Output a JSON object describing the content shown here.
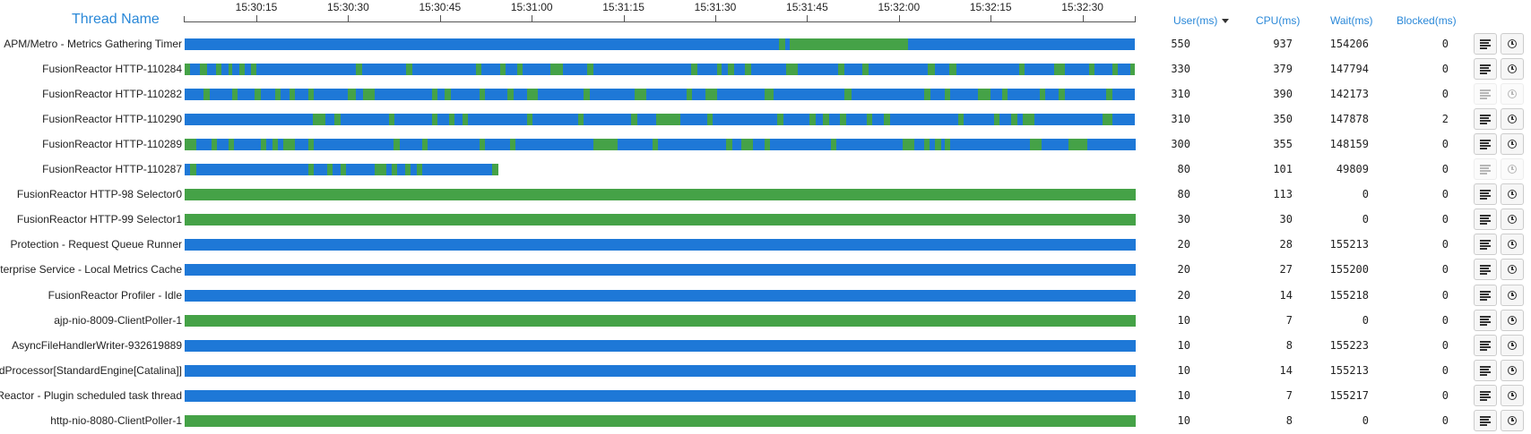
{
  "header": {
    "thread_name": "Thread Name",
    "columns": {
      "user": "User(ms)",
      "cpu": "CPU(ms)",
      "wait": "Wait(ms)",
      "blocked": "Blocked(ms)"
    },
    "sorted_column": "user",
    "sort_direction": "desc"
  },
  "timeline": {
    "ticks": [
      "15:30:15",
      "15:30:30",
      "15:30:45",
      "15:31:00",
      "15:31:15",
      "15:31:30",
      "15:31:45",
      "15:32:00",
      "15:32:15",
      "15:32:30"
    ]
  },
  "colors": {
    "waiting": "#1e78d7",
    "running": "#45a247"
  },
  "icons": {
    "stack_trace": "stack-trace-icon",
    "history": "history-clock-icon"
  },
  "threads": [
    {
      "name": "APM/Metro - Metrics Gathering Timer",
      "user": "550",
      "cpu": "937",
      "wait": "154206",
      "blocked": "0",
      "actions_enabled": true,
      "segments": [
        [
          "w",
          0,
          0.625
        ],
        [
          "r",
          0.625,
          0.632
        ],
        [
          "w",
          0.632,
          0.637
        ],
        [
          "r",
          0.637,
          0.761
        ],
        [
          "w",
          0.761,
          1.0
        ]
      ]
    },
    {
      "name": "FusionReactor HTTP-110284",
      "user": "330",
      "cpu": "379",
      "wait": "147794",
      "blocked": "0",
      "actions_enabled": true,
      "segments": [
        [
          "r",
          0,
          0.006
        ],
        [
          "w",
          0.006,
          0.016
        ],
        [
          "r",
          0.016,
          0.024
        ],
        [
          "w",
          0.024,
          0.033
        ],
        [
          "r",
          0.033,
          0.039
        ],
        [
          "w",
          0.039,
          0.046
        ],
        [
          "r",
          0.046,
          0.05
        ],
        [
          "w",
          0.05,
          0.058
        ],
        [
          "r",
          0.058,
          0.063
        ],
        [
          "w",
          0.063,
          0.07
        ],
        [
          "r",
          0.07,
          0.075
        ],
        [
          "w",
          0.075,
          0.18
        ],
        [
          "r",
          0.18,
          0.187
        ],
        [
          "w",
          0.187,
          0.233
        ],
        [
          "r",
          0.233,
          0.24
        ],
        [
          "w",
          0.24,
          0.307
        ],
        [
          "r",
          0.307,
          0.312
        ],
        [
          "w",
          0.312,
          0.332
        ],
        [
          "r",
          0.332,
          0.338
        ],
        [
          "w",
          0.338,
          0.35
        ],
        [
          "r",
          0.35,
          0.356
        ],
        [
          "w",
          0.356,
          0.385
        ],
        [
          "r",
          0.385,
          0.398
        ],
        [
          "w",
          0.398,
          0.424
        ],
        [
          "r",
          0.424,
          0.43
        ],
        [
          "w",
          0.43,
          0.533
        ],
        [
          "r",
          0.533,
          0.54
        ],
        [
          "w",
          0.54,
          0.56
        ],
        [
          "r",
          0.56,
          0.565
        ],
        [
          "w",
          0.565,
          0.572
        ],
        [
          "r",
          0.572,
          0.578
        ],
        [
          "w",
          0.578,
          0.59
        ],
        [
          "r",
          0.59,
          0.596
        ],
        [
          "w",
          0.596,
          0.633
        ],
        [
          "r",
          0.633,
          0.645
        ],
        [
          "w",
          0.645,
          0.688
        ],
        [
          "r",
          0.688,
          0.694
        ],
        [
          "w",
          0.694,
          0.713
        ],
        [
          "r",
          0.713,
          0.72
        ],
        [
          "w",
          0.72,
          0.782
        ],
        [
          "r",
          0.782,
          0.79
        ],
        [
          "w",
          0.79,
          0.805
        ],
        [
          "r",
          0.805,
          0.812
        ],
        [
          "w",
          0.812,
          0.878
        ],
        [
          "r",
          0.878,
          0.884
        ],
        [
          "w",
          0.884,
          0.915
        ],
        [
          "r",
          0.915,
          0.926
        ],
        [
          "w",
          0.926,
          0.952
        ],
        [
          "r",
          0.952,
          0.958
        ],
        [
          "w",
          0.958,
          0.976
        ],
        [
          "r",
          0.976,
          0.982
        ],
        [
          "w",
          0.982,
          0.995
        ],
        [
          "r",
          0.995,
          1.0
        ]
      ]
    },
    {
      "name": "FusionReactor HTTP-110282",
      "user": "310",
      "cpu": "390",
      "wait": "142173",
      "blocked": "0",
      "actions_enabled": false,
      "segments": [
        [
          "w",
          0,
          0.02
        ],
        [
          "r",
          0.02,
          0.026
        ],
        [
          "w",
          0.026,
          0.05
        ],
        [
          "r",
          0.05,
          0.056
        ],
        [
          "w",
          0.056,
          0.074
        ],
        [
          "r",
          0.074,
          0.08
        ],
        [
          "w",
          0.08,
          0.095
        ],
        [
          "r",
          0.095,
          0.101
        ],
        [
          "w",
          0.101,
          0.11
        ],
        [
          "r",
          0.11,
          0.116
        ],
        [
          "w",
          0.116,
          0.13
        ],
        [
          "r",
          0.13,
          0.136
        ],
        [
          "w",
          0.136,
          0.172
        ],
        [
          "r",
          0.172,
          0.18
        ],
        [
          "w",
          0.18,
          0.188
        ],
        [
          "r",
          0.188,
          0.2
        ],
        [
          "w",
          0.2,
          0.26
        ],
        [
          "r",
          0.26,
          0.266
        ],
        [
          "w",
          0.266,
          0.274
        ],
        [
          "r",
          0.274,
          0.28
        ],
        [
          "w",
          0.28,
          0.31
        ],
        [
          "r",
          0.31,
          0.316
        ],
        [
          "w",
          0.316,
          0.34
        ],
        [
          "r",
          0.34,
          0.346
        ],
        [
          "w",
          0.346,
          0.36
        ],
        [
          "r",
          0.36,
          0.372
        ],
        [
          "w",
          0.372,
          0.42
        ],
        [
          "r",
          0.42,
          0.426
        ],
        [
          "w",
          0.426,
          0.474
        ],
        [
          "r",
          0.474,
          0.486
        ],
        [
          "w",
          0.486,
          0.528
        ],
        [
          "r",
          0.528,
          0.534
        ],
        [
          "w",
          0.534,
          0.548
        ],
        [
          "r",
          0.548,
          0.56
        ],
        [
          "w",
          0.56,
          0.61
        ],
        [
          "r",
          0.61,
          0.62
        ],
        [
          "w",
          0.62,
          0.694
        ],
        [
          "r",
          0.694,
          0.702
        ],
        [
          "w",
          0.702,
          0.778
        ],
        [
          "r",
          0.778,
          0.785
        ],
        [
          "w",
          0.785,
          0.8
        ],
        [
          "r",
          0.8,
          0.806
        ],
        [
          "w",
          0.806,
          0.835
        ],
        [
          "r",
          0.835,
          0.848
        ],
        [
          "w",
          0.848,
          0.86
        ],
        [
          "r",
          0.86,
          0.866
        ],
        [
          "w",
          0.866,
          0.9
        ],
        [
          "r",
          0.9,
          0.906
        ],
        [
          "w",
          0.906,
          0.92
        ],
        [
          "r",
          0.92,
          0.926
        ],
        [
          "w",
          0.926,
          0.97
        ],
        [
          "r",
          0.97,
          0.976
        ],
        [
          "w",
          0.976,
          1.0
        ]
      ]
    },
    {
      "name": "FusionReactor HTTP-110290",
      "user": "310",
      "cpu": "350",
      "wait": "147878",
      "blocked": "2",
      "actions_enabled": true,
      "segments": [
        [
          "w",
          0,
          0.135
        ],
        [
          "r",
          0.135,
          0.148
        ],
        [
          "w",
          0.148,
          0.158
        ],
        [
          "r",
          0.158,
          0.164
        ],
        [
          "w",
          0.164,
          0.215
        ],
        [
          "r",
          0.215,
          0.221
        ],
        [
          "w",
          0.221,
          0.26
        ],
        [
          "r",
          0.26,
          0.266
        ],
        [
          "w",
          0.266,
          0.278
        ],
        [
          "r",
          0.278,
          0.284
        ],
        [
          "w",
          0.284,
          0.292
        ],
        [
          "r",
          0.292,
          0.298
        ],
        [
          "w",
          0.298,
          0.36
        ],
        [
          "r",
          0.36,
          0.366
        ],
        [
          "w",
          0.366,
          0.414
        ],
        [
          "r",
          0.414,
          0.42
        ],
        [
          "w",
          0.42,
          0.47
        ],
        [
          "r",
          0.47,
          0.476
        ],
        [
          "w",
          0.476,
          0.496
        ],
        [
          "r",
          0.496,
          0.522
        ],
        [
          "w",
          0.522,
          0.55
        ],
        [
          "r",
          0.55,
          0.556
        ],
        [
          "w",
          0.556,
          0.624
        ],
        [
          "r",
          0.624,
          0.63
        ],
        [
          "w",
          0.63,
          0.658
        ],
        [
          "r",
          0.658,
          0.664
        ],
        [
          "w",
          0.664,
          0.672
        ],
        [
          "r",
          0.672,
          0.678
        ],
        [
          "w",
          0.678,
          0.69
        ],
        [
          "r",
          0.69,
          0.696
        ],
        [
          "w",
          0.696,
          0.718
        ],
        [
          "r",
          0.718,
          0.724
        ],
        [
          "w",
          0.724,
          0.736
        ],
        [
          "r",
          0.736,
          0.742
        ],
        [
          "w",
          0.742,
          0.814
        ],
        [
          "r",
          0.814,
          0.82
        ],
        [
          "w",
          0.82,
          0.852
        ],
        [
          "r",
          0.852,
          0.858
        ],
        [
          "w",
          0.858,
          0.87
        ],
        [
          "r",
          0.87,
          0.876
        ],
        [
          "w",
          0.876,
          0.882
        ],
        [
          "r",
          0.882,
          0.894
        ],
        [
          "w",
          0.894,
          0.966
        ],
        [
          "r",
          0.966,
          0.976
        ],
        [
          "w",
          0.976,
          1.0
        ]
      ]
    },
    {
      "name": "FusionReactor HTTP-110289",
      "user": "300",
      "cpu": "355",
      "wait": "148159",
      "blocked": "0",
      "actions_enabled": true,
      "segments": [
        [
          "r",
          0,
          0.012
        ],
        [
          "w",
          0.012,
          0.028
        ],
        [
          "r",
          0.028,
          0.034
        ],
        [
          "w",
          0.034,
          0.046
        ],
        [
          "r",
          0.046,
          0.052
        ],
        [
          "w",
          0.052,
          0.08
        ],
        [
          "r",
          0.08,
          0.086
        ],
        [
          "w",
          0.086,
          0.092
        ],
        [
          "r",
          0.092,
          0.098
        ],
        [
          "w",
          0.098,
          0.104
        ],
        [
          "r",
          0.104,
          0.116
        ],
        [
          "w",
          0.116,
          0.13
        ],
        [
          "r",
          0.13,
          0.136
        ],
        [
          "w",
          0.136,
          0.22
        ],
        [
          "r",
          0.22,
          0.226
        ],
        [
          "w",
          0.226,
          0.25
        ],
        [
          "r",
          0.25,
          0.256
        ],
        [
          "w",
          0.256,
          0.31
        ],
        [
          "r",
          0.31,
          0.316
        ],
        [
          "w",
          0.316,
          0.342
        ],
        [
          "r",
          0.342,
          0.348
        ],
        [
          "w",
          0.348,
          0.43
        ],
        [
          "r",
          0.43,
          0.456
        ],
        [
          "w",
          0.456,
          0.492
        ],
        [
          "r",
          0.492,
          0.498
        ],
        [
          "w",
          0.498,
          0.57
        ],
        [
          "r",
          0.57,
          0.576
        ],
        [
          "w",
          0.576,
          0.586
        ],
        [
          "r",
          0.586,
          0.598
        ],
        [
          "w",
          0.598,
          0.61
        ],
        [
          "r",
          0.61,
          0.616
        ],
        [
          "w",
          0.616,
          0.68
        ],
        [
          "r",
          0.68,
          0.686
        ],
        [
          "w",
          0.686,
          0.756
        ],
        [
          "r",
          0.756,
          0.768
        ],
        [
          "w",
          0.768,
          0.778
        ],
        [
          "r",
          0.778,
          0.784
        ],
        [
          "w",
          0.784,
          0.79
        ],
        [
          "r",
          0.79,
          0.796
        ],
        [
          "w",
          0.796,
          0.8
        ],
        [
          "r",
          0.8,
          0.806
        ],
        [
          "w",
          0.806,
          0.89
        ],
        [
          "r",
          0.89,
          0.902
        ],
        [
          "w",
          0.902,
          0.93
        ],
        [
          "r",
          0.93,
          0.95
        ],
        [
          "w",
          0.95,
          1.0
        ]
      ]
    },
    {
      "name": "FusionReactor HTTP-110287",
      "user": "80",
      "cpu": "101",
      "wait": "49809",
      "blocked": "0",
      "actions_enabled": false,
      "segments": [
        [
          "w",
          0,
          0.006
        ],
        [
          "r",
          0.006,
          0.012
        ],
        [
          "w",
          0.012,
          0.13
        ],
        [
          "r",
          0.13,
          0.136
        ],
        [
          "w",
          0.136,
          0.15
        ],
        [
          "r",
          0.15,
          0.156
        ],
        [
          "w",
          0.156,
          0.164
        ],
        [
          "r",
          0.164,
          0.17
        ],
        [
          "w",
          0.17,
          0.2
        ],
        [
          "r",
          0.2,
          0.212
        ],
        [
          "w",
          0.212,
          0.218
        ],
        [
          "r",
          0.218,
          0.224
        ],
        [
          "w",
          0.224,
          0.232
        ],
        [
          "r",
          0.232,
          0.238
        ],
        [
          "w",
          0.238,
          0.244
        ],
        [
          "r",
          0.244,
          0.25
        ],
        [
          "w",
          0.25,
          0.324
        ],
        [
          "r",
          0.324,
          0.33
        ]
      ]
    },
    {
      "name": "FusionReactor HTTP-98 Selector0",
      "user": "80",
      "cpu": "113",
      "wait": "0",
      "blocked": "0",
      "actions_enabled": true,
      "segments": [
        [
          "r",
          0,
          1.0
        ]
      ]
    },
    {
      "name": "FusionReactor HTTP-99 Selector1",
      "user": "30",
      "cpu": "30",
      "wait": "0",
      "blocked": "0",
      "actions_enabled": true,
      "segments": [
        [
          "r",
          0,
          1.0
        ]
      ]
    },
    {
      "name": "Protection - Request Queue Runner",
      "user": "20",
      "cpu": "28",
      "wait": "155213",
      "blocked": "0",
      "actions_enabled": true,
      "segments": [
        [
          "w",
          0,
          1.0
        ]
      ]
    },
    {
      "name": "Enterprise Service - Local Metrics Cache",
      "user": "20",
      "cpu": "27",
      "wait": "155200",
      "blocked": "0",
      "actions_enabled": true,
      "segments": [
        [
          "w",
          0,
          1.0
        ]
      ]
    },
    {
      "name": "FusionReactor Profiler - Idle",
      "user": "20",
      "cpu": "14",
      "wait": "155218",
      "blocked": "0",
      "actions_enabled": true,
      "segments": [
        [
          "w",
          0,
          1.0
        ]
      ]
    },
    {
      "name": "ajp-nio-8009-ClientPoller-1",
      "user": "10",
      "cpu": "7",
      "wait": "0",
      "blocked": "0",
      "actions_enabled": true,
      "segments": [
        [
          "r",
          0,
          1.0
        ]
      ]
    },
    {
      "name": "AsyncFileHandlerWriter-932619889",
      "user": "10",
      "cpu": "8",
      "wait": "155223",
      "blocked": "0",
      "actions_enabled": true,
      "segments": [
        [
          "w",
          0,
          1.0
        ]
      ]
    },
    {
      "name": "ContainerBackgroundProcessor[StandardEngine[Catalina]]",
      "user": "10",
      "cpu": "14",
      "wait": "155213",
      "blocked": "0",
      "actions_enabled": true,
      "segments": [
        [
          "w",
          0,
          1.0
        ]
      ]
    },
    {
      "name": "FusionReactor - Plugin scheduled task thread",
      "user": "10",
      "cpu": "7",
      "wait": "155217",
      "blocked": "0",
      "actions_enabled": true,
      "segments": [
        [
          "w",
          0,
          1.0
        ]
      ]
    },
    {
      "name": "http-nio-8080-ClientPoller-1",
      "user": "10",
      "cpu": "8",
      "wait": "0",
      "blocked": "0",
      "actions_enabled": true,
      "segments": [
        [
          "r",
          0,
          1.0
        ]
      ]
    }
  ]
}
